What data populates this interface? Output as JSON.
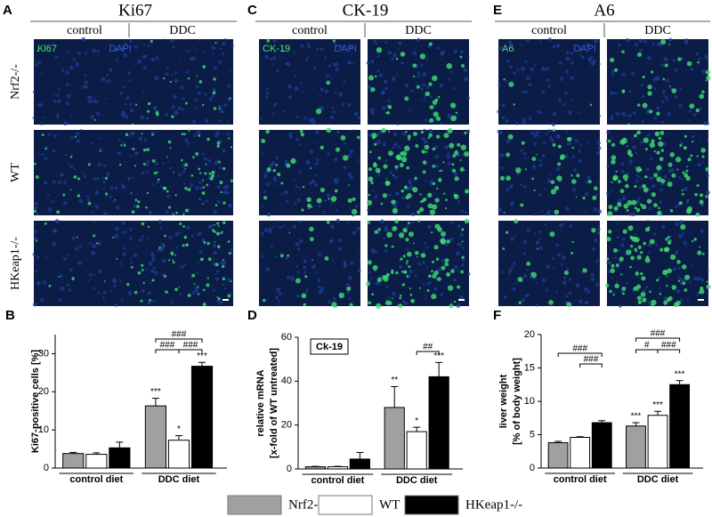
{
  "image_panels": [
    {
      "label": "A",
      "title": "Ki67",
      "columns": [
        "control",
        "DDC"
      ],
      "rows": [
        "Nrf2-/-",
        "WT",
        "HKeap1-/-"
      ],
      "stain": "Ki67",
      "counterstain": "DAPI"
    },
    {
      "label": "C",
      "title": "CK-19",
      "columns": [
        "control",
        "DDC"
      ],
      "stain": "CK-19",
      "counterstain": "DAPI"
    },
    {
      "label": "E",
      "title": "A6",
      "columns": [
        "control",
        "DDC"
      ],
      "stain": "A6",
      "counterstain": "DAPI"
    }
  ],
  "chart_data": [
    {
      "type": "bar",
      "panel": "B",
      "y_label": [
        "Ki67-positive cells [%]"
      ],
      "categories": [
        "control diet",
        "DDC diet"
      ],
      "ylim": [
        0,
        35
      ],
      "yticks": [
        0,
        10,
        20,
        30
      ],
      "series": [
        {
          "name": "Nrf2-/-",
          "color": "#a0a0a0",
          "values": [
            3.8,
            16.3
          ],
          "errors": [
            0.3,
            2.0
          ],
          "significance": [
            null,
            "***"
          ]
        },
        {
          "name": "WT",
          "color": "#ffffff",
          "values": [
            3.6,
            7.3
          ],
          "errors": [
            0.4,
            1.2
          ],
          "significance": [
            null,
            "*"
          ]
        },
        {
          "name": "HKeap1-/-",
          "color": "#000000",
          "values": [
            5.3,
            26.7
          ],
          "errors": [
            1.5,
            1.0
          ],
          "significance": [
            null,
            "***"
          ]
        }
      ],
      "brackets": [
        "###",
        "###",
        "###"
      ]
    },
    {
      "type": "bar",
      "panel": "D",
      "y_label": [
        "relative mRNA",
        "[x-fold of WT untreated]"
      ],
      "inset_label": "Ck-19",
      "categories": [
        "control diet",
        "DDC diet"
      ],
      "ylim": [
        0,
        60
      ],
      "yticks": [
        0,
        20,
        40,
        60
      ],
      "series": [
        {
          "name": "Nrf2-/-",
          "color": "#a0a0a0",
          "values": [
            1,
            28
          ],
          "errors": [
            0.2,
            9.5
          ],
          "significance": [
            null,
            "**"
          ]
        },
        {
          "name": "WT",
          "color": "#ffffff",
          "values": [
            1,
            17
          ],
          "errors": [
            0.2,
            2
          ],
          "significance": [
            null,
            "*"
          ]
        },
        {
          "name": "HKeap1-/-",
          "color": "#000000",
          "values": [
            4.5,
            42
          ],
          "errors": [
            3,
            6.5
          ],
          "significance": [
            null,
            "***"
          ]
        }
      ],
      "brackets": [
        "##"
      ]
    },
    {
      "type": "bar",
      "panel": "F",
      "y_label": [
        "liver weight",
        "[% of body weight]"
      ],
      "categories": [
        "control diet",
        "DDC diet"
      ],
      "ylim": [
        0,
        20
      ],
      "yticks": [
        0,
        5,
        10,
        15,
        20
      ],
      "series": [
        {
          "name": "Nrf2-/-",
          "color": "#a0a0a0",
          "values": [
            3.8,
            6.3
          ],
          "errors": [
            0.2,
            0.5
          ],
          "significance": [
            null,
            "***"
          ]
        },
        {
          "name": "WT",
          "color": "#ffffff",
          "values": [
            4.6,
            7.9
          ],
          "errors": [
            0.1,
            0.6
          ],
          "significance": [
            null,
            "***"
          ]
        },
        {
          "name": "HKeap1-/-",
          "color": "#000000",
          "values": [
            6.8,
            12.5
          ],
          "errors": [
            0.3,
            0.6
          ],
          "significance": [
            null,
            "***"
          ]
        }
      ],
      "brackets": [
        "###",
        "###",
        "###",
        "#",
        "###"
      ]
    }
  ]
}
